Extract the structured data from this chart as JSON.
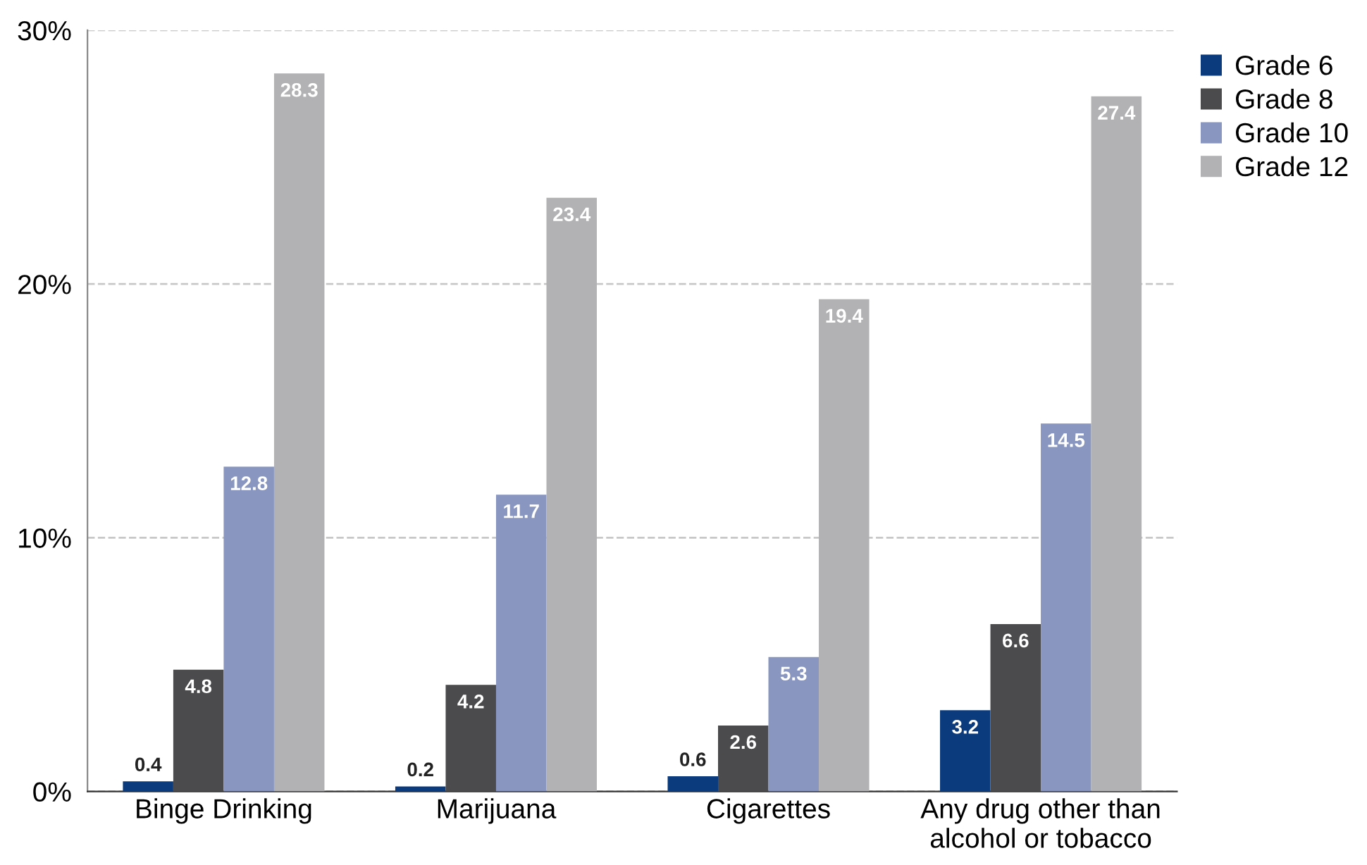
{
  "chart_data": {
    "type": "bar",
    "categories": [
      "Binge Drinking",
      "Marijuana",
      "Cigarettes",
      "Any drug other than\nalcohol or tobacco"
    ],
    "series": [
      {
        "name": "Grade 6",
        "color": "#0b3b7d",
        "values": [
          0.4,
          0.2,
          0.6,
          3.2
        ]
      },
      {
        "name": "Grade 8",
        "color": "#4b4b4d",
        "values": [
          4.8,
          4.2,
          2.6,
          6.6
        ]
      },
      {
        "name": "Grade 10",
        "color": "#8896c0",
        "values": [
          12.8,
          11.7,
          5.3,
          14.5
        ]
      },
      {
        "name": "Grade 12",
        "color": "#b2b2b4",
        "values": [
          28.3,
          23.4,
          19.4,
          27.4
        ]
      }
    ],
    "ylim": [
      0,
      30
    ],
    "yticks": [
      {
        "value": 0,
        "label": "0%"
      },
      {
        "value": 10,
        "label": "10%"
      },
      {
        "value": 20,
        "label": "20%"
      },
      {
        "value": 30,
        "label": "30%"
      }
    ],
    "grid": "y",
    "line_style": "dashed",
    "legend": "top right",
    "data_labels": true
  }
}
